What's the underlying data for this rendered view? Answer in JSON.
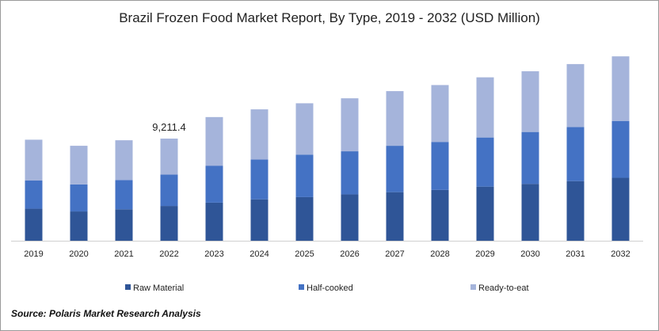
{
  "chart_data": {
    "type": "bar",
    "stacked": true,
    "title": "Brazil Frozen Food Market Report, By Type, 2019 - 2032 (USD Million)",
    "categories": [
      "2019",
      "2020",
      "2021",
      "2022",
      "2023",
      "2024",
      "2025",
      "2026",
      "2027",
      "2028",
      "2029",
      "2030",
      "2031",
      "2032"
    ],
    "series": [
      {
        "name": "Raw Material",
        "color": "#2f5597",
        "values": [
          2900,
          2650,
          2850,
          3150,
          3450,
          3750,
          3950,
          4200,
          4400,
          4600,
          4900,
          5150,
          5400,
          5700
        ]
      },
      {
        "name": "Half-cooked",
        "color": "#4472c4",
        "values": [
          2550,
          2450,
          2650,
          2850,
          3350,
          3600,
          3850,
          3900,
          4200,
          4350,
          4450,
          4700,
          4900,
          5150
        ]
      },
      {
        "name": "Ready-to-eat",
        "color": "#a5b4db",
        "values": [
          3700,
          3500,
          3600,
          3250,
          4400,
          4550,
          4650,
          4800,
          4950,
          5150,
          5450,
          5500,
          5700,
          5850
        ]
      }
    ],
    "annotations": [
      {
        "category": "2022",
        "text": "9,211.4"
      }
    ],
    "ylim": [
      0,
      17500
    ],
    "legend_position": "bottom"
  },
  "source_text": "Source: Polaris  Market Research Analysis"
}
